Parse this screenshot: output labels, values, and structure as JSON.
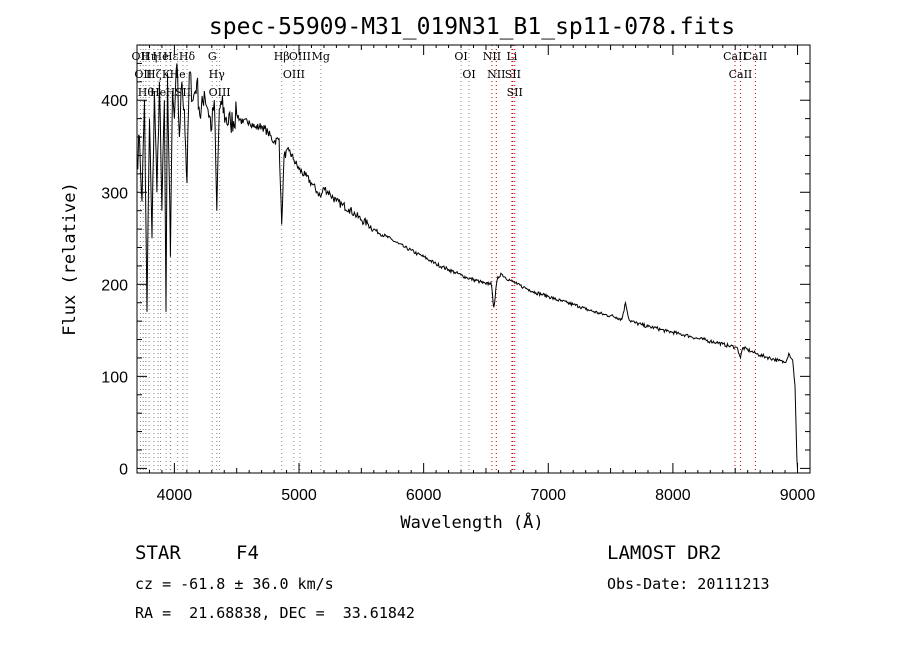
{
  "chart_data": {
    "type": "line",
    "title": "spec-55909-M31_019N31_B1_sp11-078.fits",
    "xlabel": "Wavelength (Å)",
    "ylabel": "Flux (relative)",
    "xlim": [
      3700,
      9100
    ],
    "ylim": [
      -5,
      460
    ],
    "xticks": [
      "4000",
      "5000",
      "6000",
      "7000",
      "8000",
      "9000"
    ],
    "yticks": [
      "0",
      "100",
      "200",
      "300",
      "400"
    ],
    "grid": false,
    "series": [
      {
        "x": [
          3700,
          3720,
          3740,
          3760,
          3780,
          3800,
          3820,
          3840,
          3860,
          3880,
          3900,
          3920,
          3933,
          3945,
          3968,
          3985,
          4000,
          4020,
          4040,
          4060,
          4080,
          4101,
          4120,
          4150,
          4180,
          4210,
          4240,
          4270,
          4300,
          4320,
          4340,
          4360,
          4380,
          4410,
          4450,
          4500,
          4550,
          4600,
          4650,
          4700,
          4750,
          4800,
          4840,
          4861,
          4880,
          4920,
          4960,
          5000,
          5050,
          5100,
          5150,
          5175,
          5200,
          5250,
          5300,
          5350,
          5400,
          5450,
          5500,
          5550,
          5600,
          5650,
          5700,
          5750,
          5800,
          5850,
          5900,
          5950,
          6000,
          6050,
          6100,
          6150,
          6200,
          6250,
          6300,
          6350,
          6400,
          6450,
          6500,
          6540,
          6563,
          6590,
          6620,
          6650,
          6700,
          6750,
          6800,
          6850,
          6900,
          6950,
          7000,
          7050,
          7100,
          7150,
          7200,
          7250,
          7300,
          7350,
          7400,
          7450,
          7500,
          7550,
          7590,
          7620,
          7650,
          7700,
          7750,
          7800,
          7850,
          7900,
          7950,
          8000,
          8050,
          8100,
          8150,
          8200,
          8250,
          8300,
          8350,
          8400,
          8450,
          8500,
          8520,
          8542,
          8560,
          8600,
          8630,
          8662,
          8700,
          8750,
          8800,
          8850,
          8900,
          8930,
          8960,
          8980,
          8995,
          9000
        ],
        "y": [
          330,
          360,
          290,
          400,
          170,
          380,
          250,
          410,
          300,
          420,
          280,
          400,
          170,
          430,
          230,
          410,
          380,
          440,
          360,
          420,
          390,
          310,
          430,
          400,
          420,
          380,
          410,
          390,
          370,
          400,
          280,
          390,
          395,
          380,
          375,
          385,
          375,
          378,
          370,
          372,
          365,
          355,
          358,
          265,
          340,
          345,
          335,
          325,
          318,
          310,
          300,
          295,
          305,
          298,
          290,
          286,
          282,
          276,
          270,
          266,
          260,
          255,
          252,
          248,
          244,
          240,
          237,
          233,
          230,
          226,
          222,
          219,
          216,
          213,
          210,
          207,
          205,
          203,
          200,
          202,
          175,
          205,
          212,
          208,
          204,
          200,
          197,
          194,
          191,
          189,
          187,
          184,
          182,
          180,
          178,
          176,
          173,
          171,
          169,
          167,
          166,
          164,
          162,
          180,
          161,
          158,
          156,
          154,
          153,
          151,
          149,
          148,
          146,
          145,
          143,
          141,
          140,
          138,
          137,
          135,
          133,
          132,
          130,
          120,
          131,
          129,
          127,
          125,
          123,
          121,
          119,
          117,
          115,
          125,
          118,
          90,
          10,
          0
        ]
      }
    ],
    "line_markers": [
      {
        "x": 3727,
        "label": "OII"
      },
      {
        "x": 3750,
        "label": "OII"
      },
      {
        "x": 3771,
        "label": "Hθ"
      },
      {
        "x": 3798,
        "label": "Hη"
      },
      {
        "x": 3835,
        "label": "Hζ"
      },
      {
        "x": 3869,
        "label": "He"
      },
      {
        "x": 3889,
        "label": "He"
      },
      {
        "x": 3933,
        "label": "K"
      },
      {
        "x": 3968,
        "label": "H"
      },
      {
        "x": 3970,
        "label": "Hε"
      },
      {
        "x": 4026,
        "label": "He"
      },
      {
        "x": 4069,
        "label": "SII"
      },
      {
        "x": 4101,
        "label": "Hδ"
      },
      {
        "x": 4304,
        "label": "G"
      },
      {
        "x": 4340,
        "label": "Hγ"
      },
      {
        "x": 4363,
        "label": "OIII"
      },
      {
        "x": 4861,
        "label": "Hβ"
      },
      {
        "x": 4959,
        "label": "OIII"
      },
      {
        "x": 5007,
        "label": "OIII"
      },
      {
        "x": 5175,
        "label": "Mg"
      },
      {
        "x": 6300,
        "label": "OI"
      },
      {
        "x": 6364,
        "label": "OI"
      },
      {
        "x": 6548,
        "label": "NII"
      },
      {
        "x": 6583,
        "label": "NII"
      },
      {
        "x": 6708,
        "label": "Li"
      },
      {
        "x": 6716,
        "label": "SII"
      },
      {
        "x": 6731,
        "label": "SII"
      },
      {
        "x": 8498,
        "label": "CaII"
      },
      {
        "x": 8542,
        "label": "CaII"
      },
      {
        "x": 8662,
        "label": "CaII"
      }
    ],
    "marker_colors": {
      "red": "#cc0000",
      "gray": "#888888"
    }
  },
  "info": {
    "class": "STAR",
    "subclass": "F4",
    "survey": "LAMOST DR2",
    "redshift": "cz = -61.8 ± 36.0 km/s",
    "obs_date": "Obs-Date: 20111213",
    "coords": "RA =  21.68838, DEC =  33.61842"
  }
}
